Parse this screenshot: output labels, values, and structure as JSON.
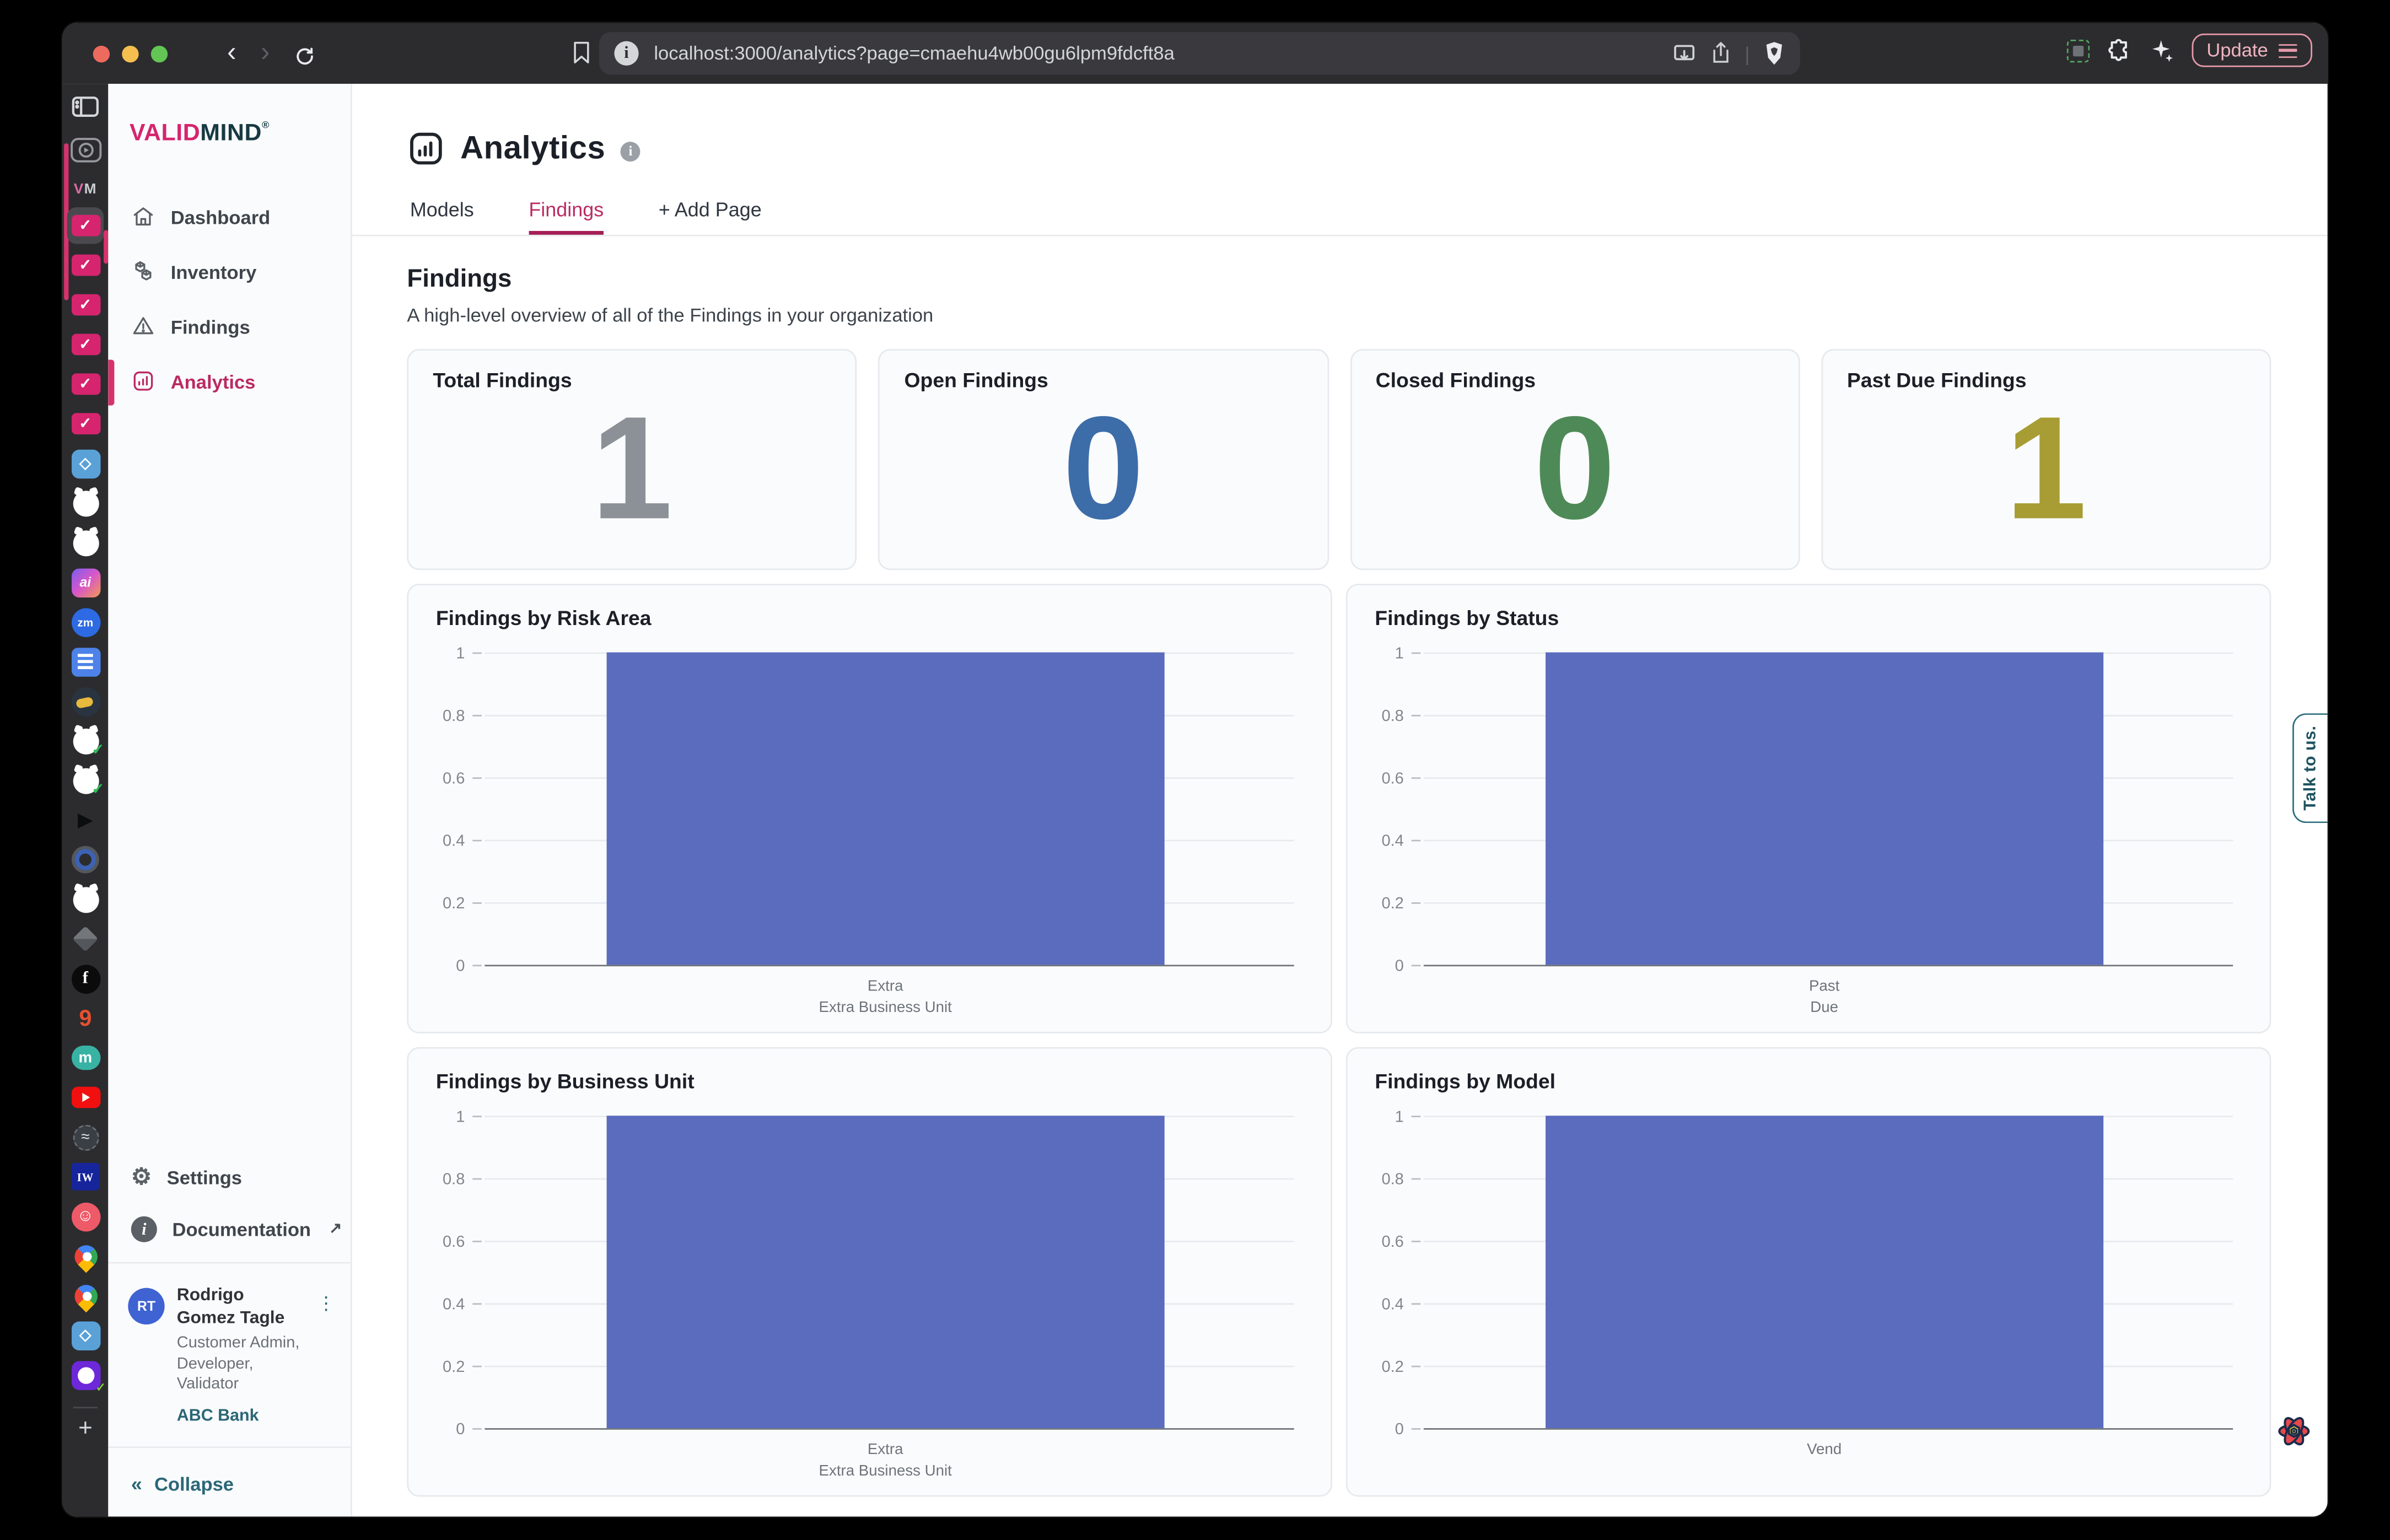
{
  "browser": {
    "url": "localhost:3000/analytics?page=cmaehu4wb00gu6lpm9fdcft8a",
    "update_label": "Update",
    "workspace_label": "VM",
    "new_tab_label": "+",
    "tabs": [
      {
        "icon": "validmind-favicon",
        "active": true
      },
      {
        "icon": "validmind-favicon"
      },
      {
        "icon": "validmind-favicon"
      },
      {
        "icon": "validmind-favicon"
      },
      {
        "icon": "validmind-favicon"
      },
      {
        "icon": "validmind-favicon"
      },
      {
        "icon": "skyblue-app"
      },
      {
        "icon": "github"
      },
      {
        "icon": "github"
      },
      {
        "icon": "ai-gradient"
      },
      {
        "icon": "zoom"
      },
      {
        "icon": "google-docs"
      },
      {
        "icon": "duck"
      },
      {
        "icon": "github-check"
      },
      {
        "icon": "github-check"
      },
      {
        "icon": "play-dark"
      },
      {
        "icon": "blue-ring"
      },
      {
        "icon": "github"
      },
      {
        "icon": "cube-gray"
      },
      {
        "icon": "facebook-dark"
      },
      {
        "icon": "nine-orange"
      },
      {
        "icon": "medium-teal"
      },
      {
        "icon": "youtube"
      },
      {
        "icon": "waves-circle"
      },
      {
        "icon": "iw-navy"
      },
      {
        "icon": "smiley-red"
      },
      {
        "icon": "maps-pin"
      },
      {
        "icon": "maps-pin"
      },
      {
        "icon": "skyblue-app"
      },
      {
        "icon": "purple-github"
      }
    ]
  },
  "sidebar": {
    "logo_part1": "VALID",
    "logo_part2": "MIND",
    "logo_reg": "®",
    "nav": [
      {
        "label": "Dashboard",
        "icon": "home",
        "active": false
      },
      {
        "label": "Inventory",
        "icon": "inventory",
        "active": false
      },
      {
        "label": "Findings",
        "icon": "warning",
        "active": false
      },
      {
        "label": "Analytics",
        "icon": "chart",
        "active": true
      }
    ],
    "settings_label": "Settings",
    "documentation_label": "Documentation",
    "user": {
      "initials": "RT",
      "name": "Rodrigo Gomez Tagle",
      "roles": "Customer Admin, Developer, Validator",
      "org": "ABC Bank"
    },
    "collapse_label": "Collapse"
  },
  "main": {
    "title": "Analytics",
    "tabs": [
      {
        "label": "Models",
        "active": false
      },
      {
        "label": "Findings",
        "active": true
      },
      {
        "label": "+ Add Page",
        "active": false
      }
    ],
    "section_title": "Findings",
    "section_desc": "A high-level overview of all of the Findings in your organization",
    "stats": [
      {
        "label": "Total Findings",
        "value": "1",
        "color": "#8b9196"
      },
      {
        "label": "Open Findings",
        "value": "0",
        "color": "#3d6da8"
      },
      {
        "label": "Closed Findings",
        "value": "0",
        "color": "#4e8a57"
      },
      {
        "label": "Past Due Findings",
        "value": "1",
        "color": "#a89d35"
      }
    ]
  },
  "chart_data": [
    {
      "type": "bar",
      "title": "Findings by Risk Area",
      "categories": [
        "Extra Extra Business Unit"
      ],
      "category_label_lines": [
        [
          "Extra",
          "Extra Business Unit"
        ]
      ],
      "values": [
        1
      ],
      "ylim": [
        0,
        1
      ],
      "yticks": [
        0,
        0.2,
        0.4,
        0.6,
        0.8,
        1
      ],
      "bar_color": "#5b6cbe",
      "grid": true,
      "legend": false
    },
    {
      "type": "bar",
      "title": "Findings by Status",
      "categories": [
        "Past Due"
      ],
      "category_label_lines": [
        [
          "Past",
          "Due"
        ]
      ],
      "values": [
        1
      ],
      "ylim": [
        0,
        1
      ],
      "yticks": [
        0,
        0.2,
        0.4,
        0.6,
        0.8,
        1
      ],
      "bar_color": "#5b6cbe",
      "grid": true,
      "legend": false
    },
    {
      "type": "bar",
      "title": "Findings by Business Unit",
      "categories": [
        "Extra Extra Business Unit"
      ],
      "category_label_lines": [
        [
          "Extra",
          "Extra Business Unit"
        ]
      ],
      "values": [
        1
      ],
      "ylim": [
        0,
        1
      ],
      "yticks": [
        0,
        0.2,
        0.4,
        0.6,
        0.8,
        1
      ],
      "bar_color": "#5b6cbe",
      "grid": true,
      "legend": false
    },
    {
      "type": "bar",
      "title": "Findings by Model",
      "categories": [
        "Vend"
      ],
      "category_label_lines": [
        [
          "Vend"
        ]
      ],
      "values": [
        1
      ],
      "ylim": [
        0,
        1
      ],
      "yticks": [
        0,
        0.2,
        0.4,
        0.6,
        0.8,
        1
      ],
      "bar_color": "#5b6cbe",
      "grid": true,
      "legend": false
    }
  ],
  "talk_to_us_label": "Talk to us."
}
